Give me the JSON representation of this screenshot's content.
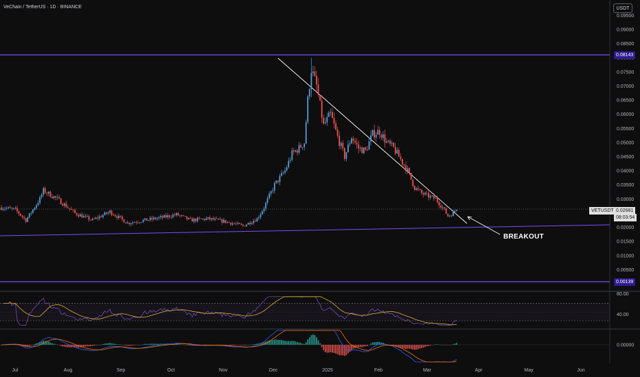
{
  "header": {
    "title": "VeChain / TetherUS · 1D · BINANCE",
    "currency_button": "USDT"
  },
  "labels": {
    "symbol": "VETUSDT",
    "last_price": "0.02681",
    "countdown": "08:03:54",
    "resistance_level": "0.08143",
    "support_level": "0.00139",
    "annotation": "BREAKOUT"
  },
  "colors": {
    "background": "#0e0e0e",
    "up_candle": "#5b9bd5",
    "down_candle": "#ef5350",
    "horizontal_levels": "#7c4dff",
    "trendline": "#ffffff",
    "rsi_line": "#7e57c2",
    "rsi_ma": "#e0b030",
    "macd_line": "#2962ff",
    "signal_line": "#ff6d00",
    "hist_up": "#26a69a",
    "hist_down": "#ef5350"
  },
  "chart_data": {
    "type": "candlestick",
    "timeframe": "1D",
    "price_axis": {
      "range": [
        0,
        0.1
      ],
      "ticks": [
        "0.09500",
        "0.09000",
        "0.08500",
        "0.08000",
        "0.07500",
        "0.07000",
        "0.06500",
        "0.06000",
        "0.05500",
        "0.05000",
        "0.04500",
        "0.04000",
        "0.03500",
        "0.03000",
        "0.02500",
        "0.02000",
        "0.01500",
        "0.01000",
        "0.00500",
        "0.00000"
      ]
    },
    "time_axis": {
      "labels": [
        "Jul",
        "Aug",
        "Sep",
        "Oct",
        "Nov",
        "Dec",
        "2025",
        "Feb",
        "Mar",
        "Apr",
        "May",
        "Jun"
      ]
    },
    "levels": [
      {
        "value": 0.08143,
        "label": "0.08143"
      },
      {
        "value": 0.00139,
        "label": "0.00139"
      }
    ],
    "price_series": {
      "months": [
        "Jul",
        "Aug",
        "Sep",
        "Oct",
        "Nov",
        "Dec",
        "2025",
        "Feb",
        "Mar"
      ],
      "monthly_close": [
        0.0285,
        0.022,
        0.0225,
        0.025,
        0.0215,
        0.05,
        0.048,
        0.033,
        0.0268
      ],
      "peak_high": 0.08,
      "last_close": 0.02681
    },
    "rsi": {
      "ticks": [
        "80.00",
        "40.00"
      ],
      "bands": [
        70,
        30
      ]
    },
    "macd": {
      "ticks": [
        "0.00000"
      ]
    }
  }
}
